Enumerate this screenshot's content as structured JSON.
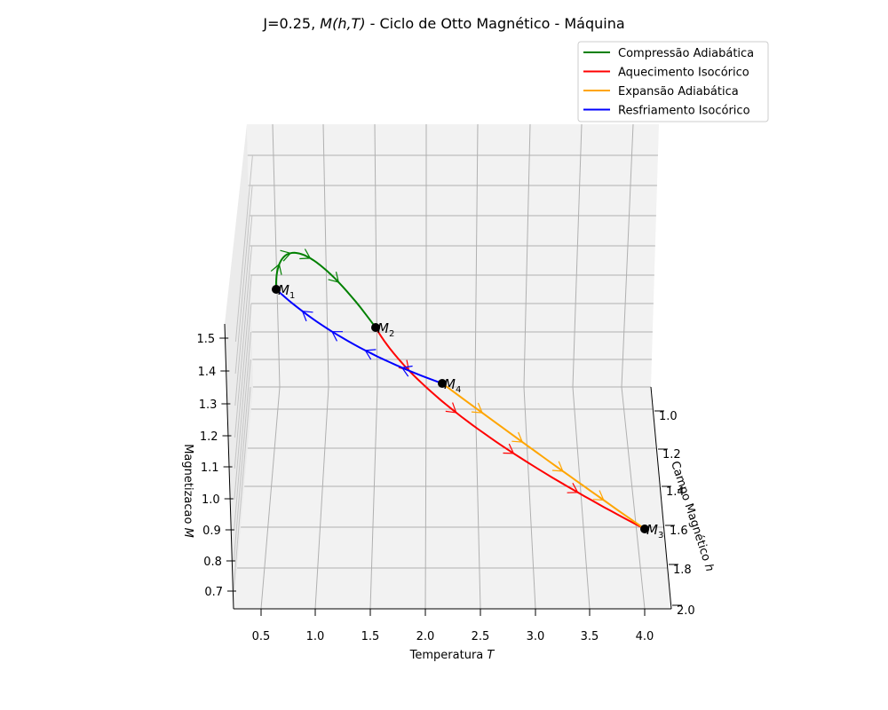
{
  "figure": {
    "title_prefix": "J=0.25, ",
    "title_math": "M(h,T)",
    "title_suffix": " - Ciclo de Otto Magnético - Máquina"
  },
  "chart_data": {
    "type": "line",
    "projection": "3d",
    "title": "J=0.25, M(h,T) - Ciclo de Otto Magnético - Máquina",
    "axes": {
      "x": {
        "label_text": "Temperatura ",
        "label_math": "T",
        "ticks": [
          "0.5",
          "1.0",
          "1.5",
          "2.0",
          "2.5",
          "3.0",
          "3.5",
          "4.0"
        ],
        "range": [
          0.5,
          4.0
        ]
      },
      "y": {
        "label_text": "Campo Magnético ",
        "label_math": "h",
        "ticks": [
          "1.0",
          "1.2",
          "1.4",
          "1.6",
          "1.8",
          "2.0"
        ],
        "range": [
          1.0,
          2.0
        ]
      },
      "z": {
        "label_text": "Magnetizacao ",
        "label_math": "M",
        "ticks": [
          "0.7",
          "0.8",
          "0.9",
          "1.0",
          "1.1",
          "1.2",
          "1.3",
          "1.4",
          "1.5"
        ],
        "range": [
          0.7,
          1.5
        ]
      }
    },
    "grid": true,
    "legend_position": "top-right",
    "series": [
      {
        "name": "Compressão Adiabática",
        "color": "#008000"
      },
      {
        "name": "Aquecimento Isocórico",
        "color": "#ff0000"
      },
      {
        "name": "Expansão Adiabática",
        "color": "#ffa500"
      },
      {
        "name": "Resfriamento Isocórico",
        "color": "#0000ff"
      }
    ],
    "points": [
      {
        "label": "M",
        "sub": "1"
      },
      {
        "label": "M",
        "sub": "2"
      },
      {
        "label": "M",
        "sub": "3"
      },
      {
        "label": "M",
        "sub": "4"
      }
    ]
  }
}
